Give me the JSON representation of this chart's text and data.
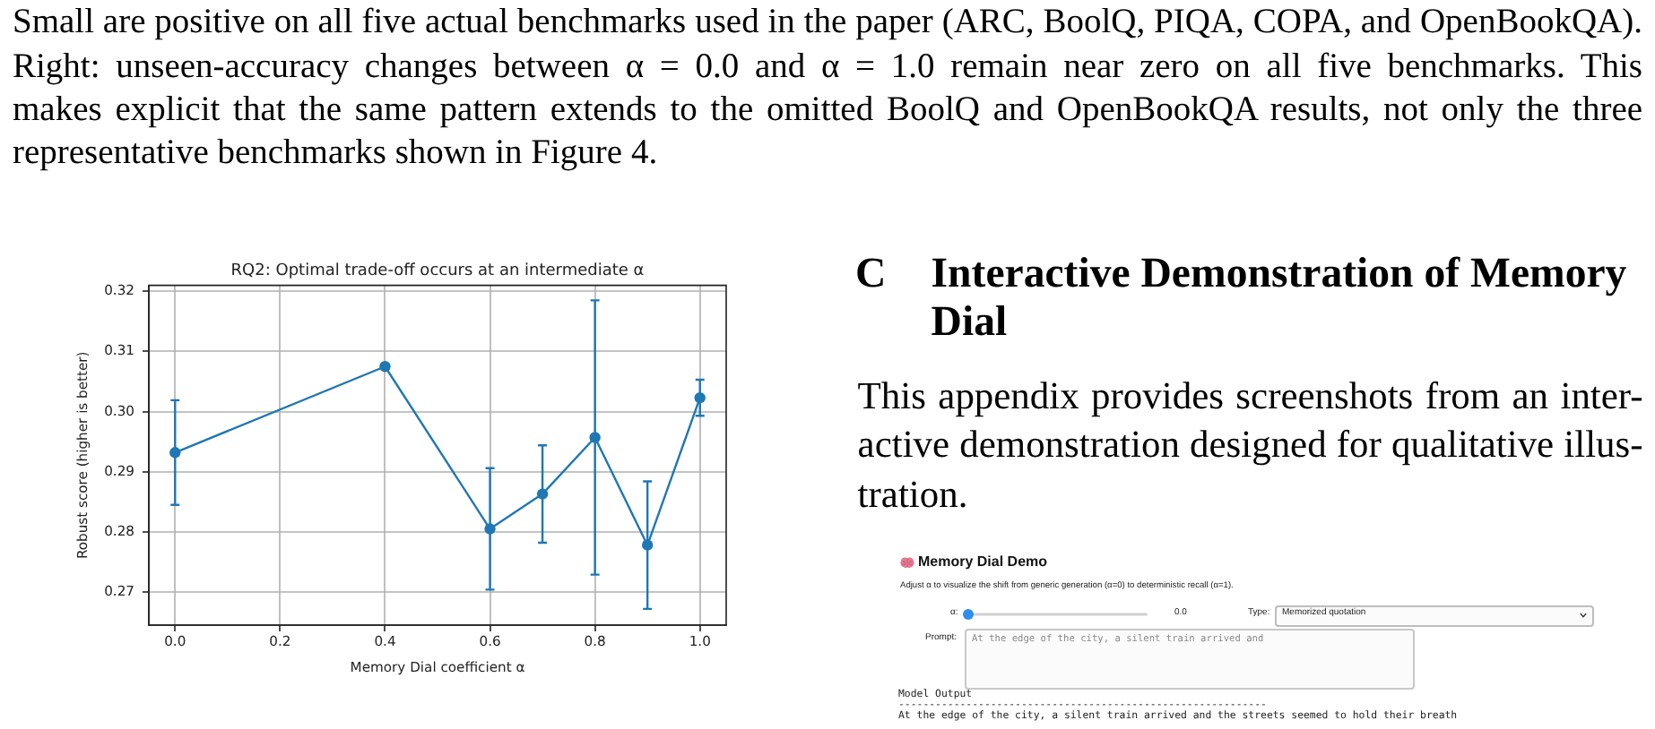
{
  "chart_data": {
    "type": "line",
    "title": "RQ2: Optimal trade-off occurs at an intermediate α",
    "xlabel": "Memory Dial coefficient α",
    "ylabel": "Robust score (higher is better)",
    "x": [
      0,
      0.4,
      0.6,
      0.7,
      0.8,
      0.9,
      1
    ],
    "series": [
      {
        "color": "#1f77b4",
        "values": [
          0.2932,
          0.3075,
          0.2805,
          0.2863,
          0.2957,
          0.2778,
          0.3023
        ],
        "errors": [
          0.0087,
          null,
          0.0101,
          0.0081,
          0.0228,
          0.0106,
          0.003
        ]
      }
    ],
    "xlim": [
      -0.05,
      1.05
    ],
    "xticks": [
      {
        "value": 0,
        "label": "0.0"
      },
      0.2,
      0.4,
      0.6,
      0.8,
      {
        "value": 1,
        "label": "1.0"
      }
    ],
    "ylim": [
      0.2645,
      0.321
    ],
    "yticks": [
      0.27,
      0.28,
      0.29,
      {
        "value": 0.3,
        "label": "0.30"
      },
      0.31,
      0.32
    ],
    "grid": true,
    "marker": "circle",
    "annotations": [
      "Small are positive on all five actual benchmarks used in the paper (ARC, BoolQ, PIQA, COPA, and OpenBookQA).\nRight: unseen-accuracy changes between α = 0.0 and α = 1.0 remain near zero on all five benchmarks. This\nmakes explicit that the same pattern extends to the omitted BoolQ and OpenBookQA results, not only the three\nrepresentative benchmarks shown in Figure 4.",
      "C",
      "Interactive Demonstration of Memory\nDial",
      "This appendix provides screenshots from an inter-\nactive demonstration designed for qualitative illus-\ntration.",
      "Memory Dial Demo",
      "Adjust α to visualize the shift from generic generation (α=0) to deterministic recall (α=1).",
      "α:",
      "0.0",
      "Type:",
      "Memorized quotation",
      "Prompt:",
      "At the edge of the city, a silent train arrived and",
      "Model Output",
      "------------------------------------------------------------",
      "At the edge of the city, a silent train arrived and the streets seemed to hold their breath"
    ]
  }
}
